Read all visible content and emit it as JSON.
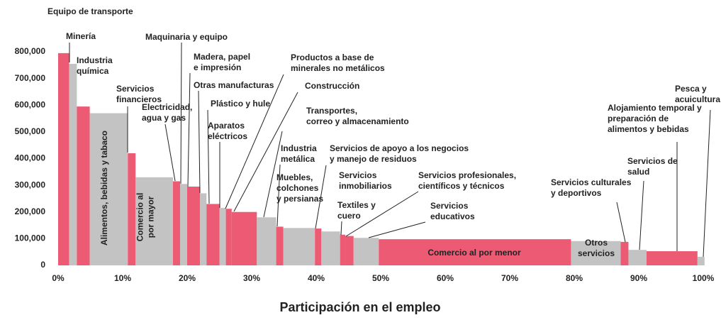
{
  "chart_data": {
    "type": "variable-width-bar",
    "x_label": "Participación en el empleo",
    "categories": [
      [
        "Equipo de transporte"
      ],
      [
        "Minería"
      ],
      [
        "Industria",
        "química"
      ],
      [
        "Alimentos, bebidas y tabaco"
      ],
      [
        "Servicios",
        "financieros"
      ],
      [
        "Comercio al",
        "por mayor"
      ],
      [
        "Electricidad,",
        "agua y gas"
      ],
      [
        "Maquinaria y equipo"
      ],
      [
        "Madera, papel",
        "e impresión"
      ],
      [
        "Otras manufacturas"
      ],
      [
        "Plástico y hule"
      ],
      [
        "Aparatos",
        "eléctricos"
      ],
      [
        "Productos a base de",
        "minerales no metálicos"
      ],
      [
        "Construcción"
      ],
      [
        "Transportes,",
        "correo y almacenamiento"
      ],
      [
        "Industria",
        "metálica"
      ],
      [
        "Muebles,",
        "colchones",
        "y persianas"
      ],
      [
        "Servicios de apoyo a los negocios",
        "y manejo de residuos"
      ],
      [
        "Servicios",
        "inmobiliarios"
      ],
      [
        "Textiles y",
        "cuero"
      ],
      [
        "Servicios profesionales,",
        "científicos y técnicos"
      ],
      [
        "Servicios",
        "educativos"
      ],
      [
        "Comercio al por menor"
      ],
      [
        "Otros",
        "servicios"
      ],
      [
        "Servicios culturales",
        "y deportivos"
      ],
      [
        "Servicios de",
        "salud"
      ],
      [
        "Alojamiento temporal y",
        "preparación de",
        "alimentos y bebidas"
      ],
      [
        "Pesca y",
        "acuicultura"
      ]
    ],
    "values": [
      795000,
      755000,
      595000,
      570000,
      420000,
      330000,
      315000,
      305000,
      295000,
      270000,
      230000,
      215000,
      212000,
      200000,
      180000,
      145000,
      140000,
      138000,
      127000,
      115000,
      110000,
      103000,
      98000,
      91000,
      88000,
      58000,
      53000,
      32000
    ],
    "widths": [
      1.7,
      1.2,
      2.0,
      5.9,
      1.2,
      5.8,
      1.1,
      1.1,
      2.0,
      1.0,
      2.0,
      1.0,
      0.9,
      3.9,
      3.0,
      1.1,
      4.9,
      1.0,
      2.9,
      0.8,
      1.3,
      3.9,
      29.8,
      7.7,
      1.2,
      2.8,
      7.9,
      1.1
    ],
    "colors": [
      "#ec5a73",
      "#c3c3c3",
      "#ec5a73",
      "#c3c3c3",
      "#ec5a73",
      "#c3c3c3",
      "#ec5a73",
      "#c3c3c3",
      "#ec5a73",
      "#c3c3c3",
      "#ec5a73",
      "#c3c3c3",
      "#ec5a73",
      "#ec5a73",
      "#c3c3c3",
      "#ec5a73",
      "#c3c3c3",
      "#ec5a73",
      "#c3c3c3",
      "#ec5a73",
      "#ec5a73",
      "#c3c3c3",
      "#ec5a73",
      "#c3c3c3",
      "#ec5a73",
      "#c3c3c3",
      "#ec5a73",
      "#c3c3c3"
    ],
    "xlim": [
      0,
      100
    ],
    "xticks": [
      {
        "value": 0,
        "label": "0%"
      },
      {
        "value": 10,
        "label": "10%"
      },
      {
        "value": 20,
        "label": "20%"
      },
      {
        "value": 30,
        "label": "30%"
      },
      {
        "value": 40,
        "label": "40%"
      },
      {
        "value": 50,
        "label": "50%"
      },
      {
        "value": 60,
        "label": "60%"
      },
      {
        "value": 70,
        "label": "70%"
      },
      {
        "value": 80,
        "label": "80%"
      },
      {
        "value": 90,
        "label": "90%"
      },
      {
        "value": 100,
        "label": "100%"
      }
    ],
    "ylim": [
      0,
      800000
    ],
    "yticks": [
      0,
      {
        "value": 100000,
        "label": "100,000"
      },
      {
        "value": 200000,
        "label": "200,000"
      },
      {
        "value": 300000,
        "label": "300,000"
      },
      {
        "value": 400000,
        "label": "400,000"
      },
      {
        "value": 500000,
        "label": "500,000"
      },
      {
        "value": 600000,
        "label": "600,000"
      },
      {
        "value": 700000,
        "label": "700,000"
      },
      {
        "value": 800000,
        "label": "800,000"
      }
    ]
  }
}
